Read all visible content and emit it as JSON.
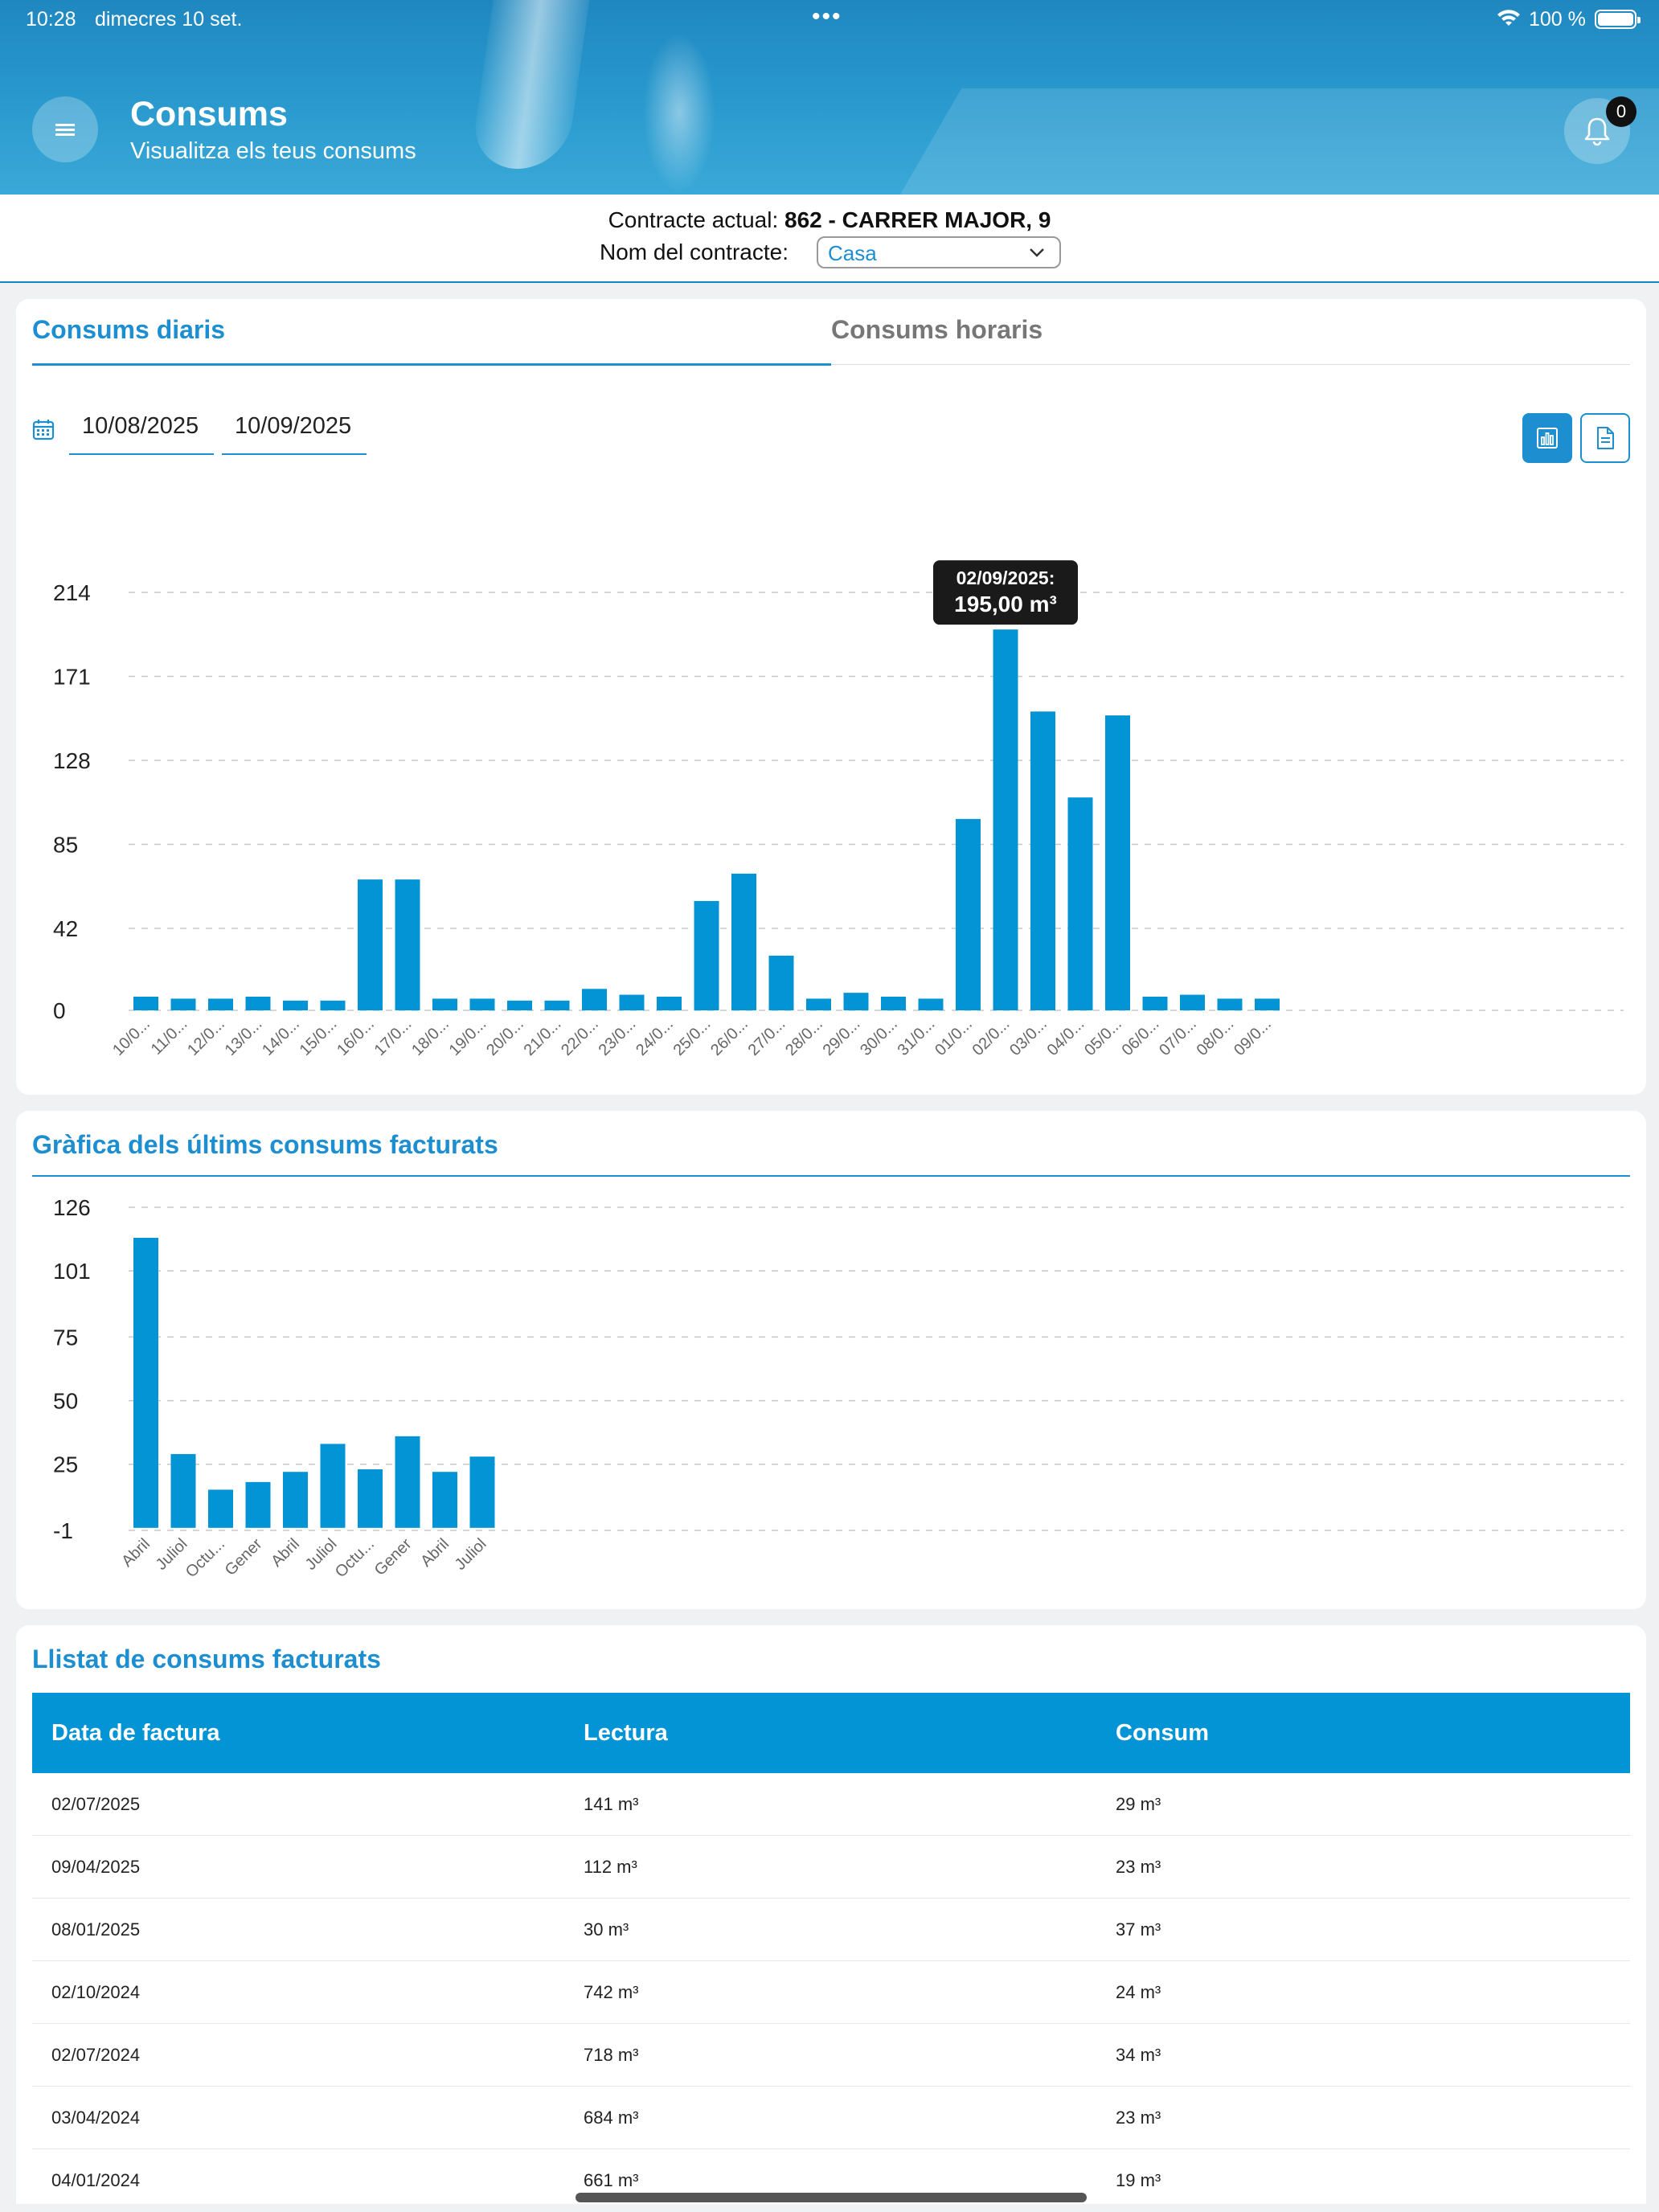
{
  "status_bar": {
    "time": "10:28",
    "date": "dimecres 10 set.",
    "battery": "100 %"
  },
  "header": {
    "title": "Consums",
    "subtitle": "Visualitza els teus consums",
    "notifications": "0"
  },
  "contract": {
    "current_label": "Contracte actual:",
    "current_value": "862 -  CARRER MAJOR, 9",
    "name_label": "Nom del contracte:",
    "name_value": "Casa"
  },
  "tabs": [
    {
      "label": "Consums diaris",
      "active": true
    },
    {
      "label": "Consums horaris",
      "active": false
    }
  ],
  "date_range": {
    "from": "10/08/2025",
    "to": "10/09/2025"
  },
  "daily_chart": {
    "tooltip": {
      "date": "02/09/2025:",
      "value": "195,00 m³"
    },
    "chart_data": {
      "type": "bar",
      "yticks": [
        0,
        42,
        85,
        128,
        171,
        214
      ],
      "ylim": [
        0,
        214
      ],
      "categories": [
        "10/0...",
        "11/0...",
        "12/0...",
        "13/0...",
        "14/0...",
        "15/0...",
        "16/0...",
        "17/0...",
        "18/0...",
        "19/0...",
        "20/0...",
        "21/0...",
        "22/0...",
        "23/0...",
        "24/0...",
        "25/0...",
        "26/0...",
        "27/0...",
        "28/0...",
        "29/0...",
        "30/0...",
        "31/0...",
        "01/0...",
        "02/0...",
        "03/0...",
        "04/0...",
        "05/0...",
        "06/0...",
        "07/0...",
        "08/0...",
        "09/0..."
      ],
      "values": [
        7,
        6,
        6,
        7,
        5,
        5,
        67,
        67,
        6,
        6,
        5,
        5,
        11,
        8,
        7,
        56,
        70,
        28,
        6,
        9,
        7,
        6,
        98,
        195,
        153,
        109,
        151,
        7,
        8,
        6,
        6
      ],
      "color": "#0394d6",
      "grid": true
    }
  },
  "billed_chart": {
    "title": "Gràfica dels últims consums facturats",
    "chart_data": {
      "type": "bar",
      "yticks": [
        -1,
        25,
        50,
        75,
        101,
        126
      ],
      "ylim": [
        -1,
        126
      ],
      "categories": [
        "Abril",
        "Juliol",
        "Octu...",
        "Gener",
        "Abril",
        "Juliol",
        "Octu...",
        "Gener",
        "Abril",
        "Juliol"
      ],
      "values": [
        114,
        29,
        15,
        18,
        22,
        33,
        23,
        36,
        22,
        28
      ],
      "color": "#0394d6",
      "grid": true
    }
  },
  "billed_list": {
    "title": "Llistat de consums facturats",
    "columns": [
      "Data de factura",
      "Lectura",
      "Consum"
    ],
    "rows": [
      [
        "02/07/2025",
        "141 m³",
        "29 m³"
      ],
      [
        "09/04/2025",
        "112 m³",
        "23 m³"
      ],
      [
        "08/01/2025",
        "30 m³",
        "37 m³"
      ],
      [
        "02/10/2024",
        "742 m³",
        "24 m³"
      ],
      [
        "02/07/2024",
        "718 m³",
        "34 m³"
      ],
      [
        "03/04/2024",
        "684 m³",
        "23 m³"
      ],
      [
        "04/01/2024",
        "661 m³",
        "19 m³"
      ]
    ]
  }
}
